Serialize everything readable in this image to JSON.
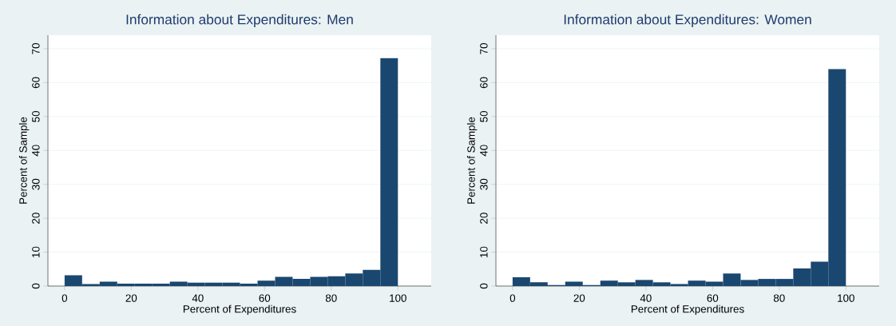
{
  "chart_data": [
    {
      "type": "histogram",
      "title": "Information about Expenditures: Men",
      "xlabel": "Percent of Expenditures",
      "ylabel": "Percent of Sample",
      "bins": [
        0,
        5.26,
        10.53,
        15.79,
        21.05,
        26.32,
        31.58,
        36.84,
        42.11,
        47.37,
        52.63,
        57.89,
        63.16,
        68.42,
        73.68,
        78.95,
        84.21,
        89.47,
        94.74,
        100
      ],
      "values": [
        3.2,
        0.6,
        1.3,
        0.7,
        0.7,
        0.7,
        1.3,
        1.0,
        1.0,
        1.0,
        0.7,
        1.6,
        2.7,
        2.1,
        2.7,
        2.9,
        3.7,
        4.8,
        67.2
      ],
      "color": "#1a476f",
      "xlim": [
        -5,
        110
      ],
      "ylim": [
        0,
        74
      ],
      "xticks": [
        0,
        20,
        40,
        60,
        80,
        100
      ],
      "yticks": [
        0,
        10,
        20,
        30,
        40,
        50,
        60,
        70
      ],
      "grid": "y"
    },
    {
      "type": "histogram",
      "title": "Information about Expenditures: Women",
      "xlabel": "Percent of Expenditures",
      "ylabel": "Percent of Sample",
      "bins": [
        0,
        5.26,
        10.53,
        15.79,
        21.05,
        26.32,
        31.58,
        36.84,
        42.11,
        47.37,
        52.63,
        57.89,
        63.16,
        68.42,
        73.68,
        78.95,
        84.21,
        89.47,
        94.74,
        100
      ],
      "values": [
        2.6,
        1.1,
        0.3,
        1.3,
        0.3,
        1.6,
        1.1,
        1.8,
        1.1,
        0.6,
        1.6,
        1.3,
        3.7,
        1.8,
        2.1,
        2.1,
        5.2,
        7.2,
        64.0
      ],
      "color": "#1a476f",
      "xlim": [
        -5,
        110
      ],
      "ylim": [
        0,
        74
      ],
      "xticks": [
        0,
        20,
        40,
        60,
        80,
        100
      ],
      "yticks": [
        0,
        10,
        20,
        30,
        40,
        50,
        60,
        70
      ],
      "grid": "y"
    }
  ]
}
